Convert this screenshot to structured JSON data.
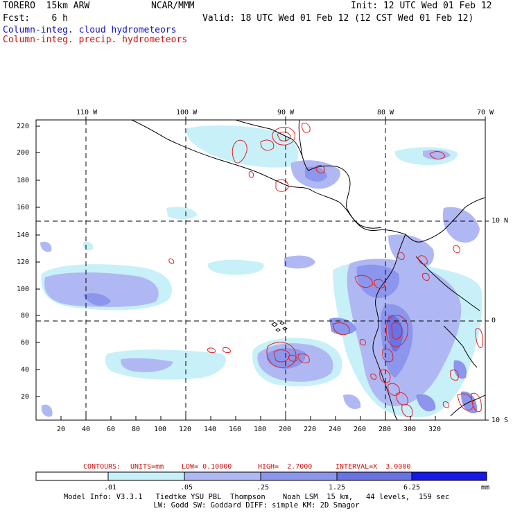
{
  "header": {
    "model": "TORERO  15km ARW",
    "center": "NCAR/MMM",
    "init": "Init: 12 UTC Wed 01 Feb 12",
    "fcst": "Fcst:    6 h",
    "valid": "Valid: 18 UTC Wed 01 Feb 12 (12 CST Wed 01 Feb 12)",
    "field_cloud": "Column-integ. cloud hydrometeors",
    "field_precip": "Column-integ. precip. hydrometeors"
  },
  "colors": {
    "cloud_text": "#1010c8",
    "precip_text": "#d01010",
    "shade_1": "#c8f0f8",
    "shade_2": "#b0b8f4",
    "shade_3": "#8c96ec",
    "shade_4": "#6a72e4",
    "shade_5": "#4048e0",
    "shade_6": "#1818e8",
    "contour": "#e02020"
  },
  "map": {
    "top_longitudes": [
      "110 W",
      "100 W",
      "90 W",
      "80 W",
      "70 W"
    ],
    "right_latitudes": [
      "10 N",
      "0",
      "10 S"
    ],
    "y_ticks": [
      "220",
      "200",
      "180",
      "160",
      "140",
      "120",
      "100",
      "80",
      "60",
      "40",
      "20"
    ],
    "x_ticks": [
      "20",
      "40",
      "60",
      "80",
      "100",
      "120",
      "140",
      "160",
      "180",
      "200",
      "220",
      "240",
      "260",
      "280",
      "300",
      "320"
    ]
  },
  "contour_info": {
    "label": "CONTOURS:",
    "units": "UNITS=mm",
    "low": "LOW= 0.10000",
    "high": "HIGH=  2.7000",
    "interval": "INTERVAL=X  3.0000"
  },
  "colorbar": {
    "labels": [
      ".01",
      ".05",
      ".25",
      "1.25",
      "6.25"
    ],
    "unit": "mm"
  },
  "footer": {
    "line1": "Model Info: V3.3.1   Tiedtke YSU PBL  Thompson    Noah LSM  15 km,   44 levels,  159 sec",
    "line2": "LW: Godd SW: Goddard DIFF: simple KM: 2D Smagor"
  }
}
